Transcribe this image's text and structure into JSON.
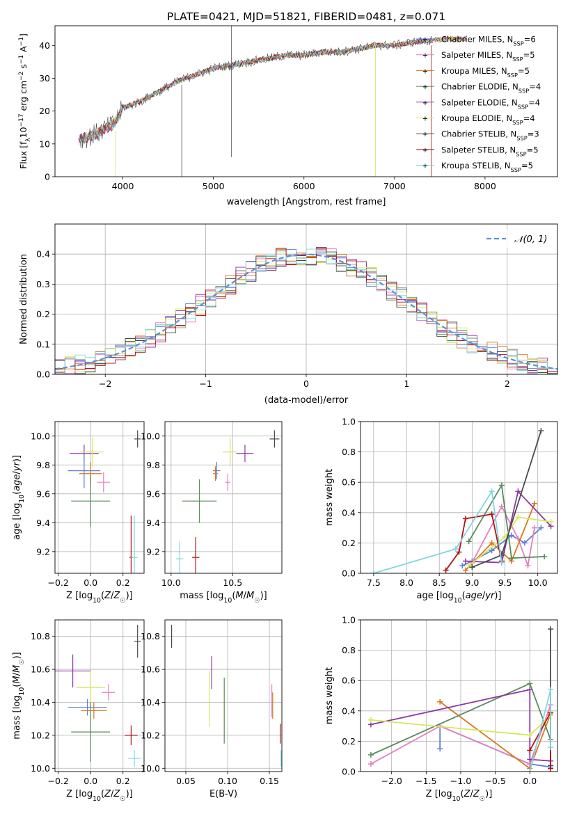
{
  "figure_title": "PLATE=0421, MJD=51821, FIBERID=0481, z=0.071",
  "colors": {
    "chabrier_miles": "#5b7fd6",
    "salpeter_miles": "#e37fbf",
    "kroupa_miles": "#d9761a",
    "chabrier_elodie": "#5a8a5a",
    "salpeter_elodie": "#8e35a8",
    "kroupa_elodie": "#d4e85a",
    "chabrier_stelib": "#4a4a4a",
    "salpeter_stelib": "#b01010",
    "kroupa_stelib": "#7fd6e0",
    "gaussian": "#5b8fd6"
  },
  "chart_data": [
    {
      "type": "line",
      "panel": "spectrum",
      "xlabel": "wavelength [Angstrom, rest frame]",
      "ylabel": "Flux [f_λ 10^-17 erg cm^-2 s^-1 A^-1]",
      "xlim": [
        3250,
        8800
      ],
      "ylim": [
        0,
        46
      ],
      "xticks": [
        "4000",
        "5000",
        "6000",
        "7000",
        "8000"
      ],
      "yticks": [
        "0",
        "10",
        "20",
        "30",
        "40"
      ],
      "legend_position": "top-right",
      "legend": [
        {
          "key": "chabrier_miles",
          "name": "Chabrier MILES, N",
          "sub": "SSP",
          "tail": "=6"
        },
        {
          "key": "salpeter_miles",
          "name": "Salpeter MILES, N",
          "sub": "SSP",
          "tail": "=5"
        },
        {
          "key": "kroupa_miles",
          "name": "Kroupa MILES, N",
          "sub": "SSP",
          "tail": "=5"
        },
        {
          "key": "chabrier_elodie",
          "name": "Chabrier ELODIE, N",
          "sub": "SSP",
          "tail": "=4"
        },
        {
          "key": "salpeter_elodie",
          "name": "Salpeter ELODIE, N",
          "sub": "SSP",
          "tail": "=4"
        },
        {
          "key": "kroupa_elodie",
          "name": "Kroupa ELODIE, N",
          "sub": "SSP",
          "tail": "=4"
        },
        {
          "key": "chabrier_stelib",
          "name": "Chabrier STELIB, N",
          "sub": "SSP",
          "tail": "=3"
        },
        {
          "key": "salpeter_stelib",
          "name": "Salpeter STELIB, N",
          "sub": "SSP",
          "tail": "=5"
        },
        {
          "key": "kroupa_stelib",
          "name": "Kroupa STELIB, N",
          "sub": "SSP",
          "tail": "=5"
        }
      ],
      "spectrum_trend": [
        [
          3500,
          11
        ],
        [
          3700,
          13
        ],
        [
          3900,
          16
        ],
        [
          4000,
          21
        ],
        [
          4200,
          23
        ],
        [
          4400,
          26
        ],
        [
          4600,
          29
        ],
        [
          4800,
          31
        ],
        [
          5000,
          33
        ],
        [
          5200,
          34
        ],
        [
          5400,
          35
        ],
        [
          5600,
          36
        ],
        [
          5800,
          37
        ],
        [
          6000,
          37
        ],
        [
          6200,
          38
        ],
        [
          6400,
          38
        ],
        [
          6600,
          39
        ],
        [
          6800,
          40
        ],
        [
          7000,
          40
        ],
        [
          7200,
          41
        ],
        [
          7400,
          41.5
        ],
        [
          7600,
          42
        ],
        [
          7800,
          42
        ]
      ],
      "spike_lines": [
        {
          "x": 5200,
          "y0": 6,
          "y1": 46,
          "key": "chabrier_stelib"
        },
        {
          "x": 4650,
          "y0": 0,
          "y1": 28,
          "key": "chabrier_stelib"
        },
        {
          "x": 3920,
          "y0": 0,
          "y1": 14,
          "key": "kroupa_elodie"
        },
        {
          "x": 6790,
          "y0": 0,
          "y1": 40,
          "key": "kroupa_elodie"
        },
        {
          "x": 7405,
          "y0": 0,
          "y1": 40,
          "key": "salpeter_stelib"
        }
      ]
    },
    {
      "type": "line",
      "panel": "residuals",
      "xlabel": "(data-model)/error",
      "ylabel": "Normed distribution",
      "xlim": [
        -2.5,
        2.5
      ],
      "ylim": [
        0,
        0.5
      ],
      "xticks": [
        "−2",
        "−1",
        "0",
        "1",
        "2"
      ],
      "yticks": [
        "0.0",
        "0.1",
        "0.2",
        "0.3",
        "0.4"
      ],
      "legend_position": "top-right",
      "legend_label": "𝒩(0, 1)",
      "bin_width": 0.1,
      "gaussian": {
        "mean": 0,
        "sigma": 1
      }
    },
    {
      "type": "scatter",
      "panel": "age_vs_Z",
      "xlabel": "Z [log10(Z/Z☉)]",
      "ylabel": "age [log10(age/yr)]",
      "xlim": [
        -0.22,
        0.33
      ],
      "ylim": [
        9.05,
        10.1
      ],
      "xticks": [
        "−0.2",
        "0.0",
        "0.2"
      ],
      "yticks": [
        "9.2",
        "9.4",
        "9.6",
        "9.8",
        "10.0"
      ],
      "points": [
        {
          "key": "chabrier_stelib",
          "x": 0.29,
          "y": 9.98,
          "xerr": 0.02,
          "yerr": 0.06
        },
        {
          "key": "salpeter_elodie",
          "x": -0.04,
          "y": 9.88,
          "xerr": 0.09,
          "yerr": 0.06
        },
        {
          "key": "kroupa_elodie",
          "x": 0.01,
          "y": 9.89,
          "xerr": 0.07,
          "yerr": 0.1
        },
        {
          "key": "chabrier_miles",
          "x": -0.04,
          "y": 9.76,
          "xerr": 0.1,
          "yerr": 0.12
        },
        {
          "key": "kroupa_miles",
          "x": 0.0,
          "y": 9.74,
          "xerr": 0.07,
          "yerr": 0.08
        },
        {
          "key": "salpeter_miles",
          "x": 0.08,
          "y": 9.68,
          "xerr": 0.04,
          "yerr": 0.07
        },
        {
          "key": "chabrier_elodie",
          "x": 0.0,
          "y": 9.55,
          "xerr": 0.12,
          "yerr": 0.18
        },
        {
          "key": "salpeter_stelib",
          "x": 0.25,
          "y": 9.16,
          "xerr": 0.01,
          "yerr": 0.29
        },
        {
          "key": "kroupa_stelib",
          "x": 0.27,
          "y": 9.16,
          "xerr": 0.02,
          "yerr": 0.29
        }
      ]
    },
    {
      "type": "scatter",
      "panel": "age_vs_mass",
      "xlabel": "mass [log10(M/M☉)]",
      "ylabel": "",
      "xlim": [
        9.95,
        10.9
      ],
      "ylim": [
        9.05,
        10.1
      ],
      "xticks": [
        "10.0",
        "10.5"
      ],
      "yticks": [
        "9.2",
        "9.4",
        "9.6",
        "9.8",
        "10.0"
      ],
      "points": [
        {
          "key": "chabrier_stelib",
          "x": 10.84,
          "y": 9.98,
          "xerr": 0.04,
          "yerr": 0.06
        },
        {
          "key": "salpeter_elodie",
          "x": 10.6,
          "y": 9.88,
          "xerr": 0.07,
          "yerr": 0.06
        },
        {
          "key": "kroupa_elodie",
          "x": 10.48,
          "y": 9.89,
          "xerr": 0.06,
          "yerr": 0.1
        },
        {
          "key": "chabrier_miles",
          "x": 10.37,
          "y": 9.76,
          "xerr": 0.03,
          "yerr": 0.06
        },
        {
          "key": "kroupa_miles",
          "x": 10.36,
          "y": 9.74,
          "xerr": 0.02,
          "yerr": 0.05
        },
        {
          "key": "salpeter_miles",
          "x": 10.46,
          "y": 9.68,
          "xerr": 0.02,
          "yerr": 0.06
        },
        {
          "key": "chabrier_elodie",
          "x": 10.23,
          "y": 9.55,
          "xerr": 0.14,
          "yerr": 0.15
        },
        {
          "key": "salpeter_stelib",
          "x": 10.2,
          "y": 9.16,
          "xerr": 0.03,
          "yerr": 0.14
        },
        {
          "key": "kroupa_stelib",
          "x": 10.07,
          "y": 9.15,
          "xerr": 0.03,
          "yerr": 0.12
        }
      ]
    },
    {
      "type": "line",
      "panel": "weight_vs_age",
      "xlabel": "age [log10(age/yr)]",
      "ylabel": "mass weight",
      "xlim": [
        7.3,
        10.3
      ],
      "ylim": [
        0,
        1
      ],
      "xticks": [
        "7.5",
        "8.0",
        "8.5",
        "9.0",
        "9.5",
        "10.0"
      ],
      "yticks": [
        "0.0",
        "0.2",
        "0.4",
        "0.6",
        "0.8",
        "1.0"
      ],
      "series": [
        {
          "key": "chabrier_miles",
          "points": [
            [
              8.85,
              0.05
            ],
            [
              9.0,
              0.08
            ],
            [
              9.3,
              0.15
            ],
            [
              9.6,
              0.25
            ],
            [
              9.8,
              0.2
            ],
            [
              10.05,
              0.3
            ]
          ]
        },
        {
          "key": "salpeter_miles",
          "points": [
            [
              9.0,
              0.07
            ],
            [
              9.45,
              0.44
            ],
            [
              9.7,
              0.23
            ],
            [
              9.85,
              0.05
            ],
            [
              9.95,
              0.3
            ]
          ]
        },
        {
          "key": "kroupa_miles",
          "points": [
            [
              8.9,
              0.02
            ],
            [
              9.3,
              0.2
            ],
            [
              9.6,
              0.08
            ],
            [
              9.95,
              0.46
            ]
          ]
        },
        {
          "key": "chabrier_elodie",
          "points": [
            [
              8.95,
              0.21
            ],
            [
              9.45,
              0.58
            ],
            [
              9.6,
              0.1
            ],
            [
              10.1,
              0.11
            ]
          ]
        },
        {
          "key": "salpeter_elodie",
          "points": [
            [
              8.9,
              0.08
            ],
            [
              9.45,
              0.07
            ],
            [
              9.7,
              0.54
            ],
            [
              10.2,
              0.31
            ]
          ]
        },
        {
          "key": "kroupa_elodie",
          "points": [
            [
              8.95,
              0.05
            ],
            [
              9.5,
              0.24
            ],
            [
              9.7,
              0.37
            ],
            [
              10.2,
              0.34
            ]
          ]
        },
        {
          "key": "chabrier_stelib",
          "points": [
            [
              9.0,
              0.04
            ],
            [
              9.45,
              0.12
            ],
            [
              10.05,
              0.94
            ]
          ]
        },
        {
          "key": "salpeter_stelib",
          "points": [
            [
              8.6,
              0.02
            ],
            [
              8.8,
              0.14
            ],
            [
              8.9,
              0.36
            ],
            [
              9.3,
              0.39
            ],
            [
              9.45,
              0.08
            ]
          ]
        },
        {
          "key": "kroupa_stelib",
          "points": [
            [
              7.5,
              0.0
            ],
            [
              8.75,
              0.16
            ],
            [
              9.3,
              0.54
            ],
            [
              9.45,
              0.07
            ]
          ]
        }
      ]
    },
    {
      "type": "scatter",
      "panel": "mass_vs_Z",
      "xlabel": "Z [log10(Z/Z☉)]",
      "ylabel": "mass [log10(M/M☉)]",
      "xlim": [
        -0.22,
        0.33
      ],
      "ylim": [
        9.98,
        10.9
      ],
      "xticks": [
        "−0.2",
        "0.0",
        "0.2"
      ],
      "yticks": [
        "10.0",
        "10.2",
        "10.4",
        "10.6",
        "10.8"
      ],
      "points": [
        {
          "key": "chabrier_stelib",
          "x": 0.29,
          "y": 10.77,
          "xerr": 0.02,
          "yerr": 0.1
        },
        {
          "key": "salpeter_elodie",
          "x": -0.11,
          "y": 10.59,
          "xerr": 0.11,
          "yerr": 0.1
        },
        {
          "key": "kroupa_elodie",
          "x": 0.0,
          "y": 10.49,
          "xerr": 0.09,
          "yerr": 0.1
        },
        {
          "key": "salpeter_miles",
          "x": 0.11,
          "y": 10.46,
          "xerr": 0.04,
          "yerr": 0.05
        },
        {
          "key": "chabrier_miles",
          "x": -0.02,
          "y": 10.37,
          "xerr": 0.12,
          "yerr": 0.05
        },
        {
          "key": "kroupa_miles",
          "x": 0.02,
          "y": 10.35,
          "xerr": 0.08,
          "yerr": 0.05
        },
        {
          "key": "chabrier_elodie",
          "x": 0.0,
          "y": 10.22,
          "xerr": 0.12,
          "yerr": 0.18
        },
        {
          "key": "salpeter_stelib",
          "x": 0.25,
          "y": 10.2,
          "xerr": 0.04,
          "yerr": 0.06
        },
        {
          "key": "kroupa_stelib",
          "x": 0.27,
          "y": 10.06,
          "xerr": 0.04,
          "yerr": 0.05
        }
      ]
    },
    {
      "type": "scatter",
      "panel": "mass_vs_ebv",
      "xlabel": "E(B-V)",
      "ylabel": "",
      "xlim": [
        0.025,
        0.165
      ],
      "ylim": [
        9.98,
        10.9
      ],
      "xticks": [
        "0.05",
        "0.10",
        "0.15"
      ],
      "yticks": [
        "10.0",
        "10.2",
        "10.4",
        "10.6",
        "10.8"
      ],
      "points": [
        {
          "key": "chabrier_stelib",
          "x": 0.033,
          "y": 10.8,
          "yerr": 0.07
        },
        {
          "key": "salpeter_elodie",
          "x": 0.081,
          "y": 10.58,
          "yerr": 0.1
        },
        {
          "key": "kroupa_elodie",
          "x": 0.078,
          "y": 10.42,
          "yerr": 0.17
        },
        {
          "key": "chabrier_elodie",
          "x": 0.096,
          "y": 10.35,
          "yerr": 0.2
        },
        {
          "key": "salpeter_miles",
          "x": 0.153,
          "y": 10.41,
          "yerr": 0.1
        },
        {
          "key": "kroupa_miles",
          "x": 0.154,
          "y": 10.38,
          "yerr": 0.08
        },
        {
          "key": "salpeter_stelib",
          "x": 0.163,
          "y": 10.21,
          "yerr": 0.06
        },
        {
          "key": "kroupa_stelib",
          "x": 0.164,
          "y": 10.06,
          "yerr": 0.05
        }
      ]
    },
    {
      "type": "line",
      "panel": "weight_vs_Z",
      "xlabel": "Z [log10(Z/Z☉)]",
      "ylabel": "mass weight",
      "xlim": [
        -2.45,
        0.4
      ],
      "ylim": [
        0,
        1
      ],
      "xticks": [
        "−2.0",
        "−1.5",
        "−1.0",
        "−0.5",
        "0.0"
      ],
      "yticks": [
        "0.0",
        "0.2",
        "0.4",
        "0.6",
        "0.8",
        "1.0"
      ],
      "series": [
        {
          "key": "chabrier_miles",
          "points": [
            [
              -1.3,
              0.15
            ],
            [
              -1.3,
              0.3
            ],
            [
              0.0,
              0.05
            ],
            [
              0.3,
              0.03
            ]
          ]
        },
        {
          "key": "salpeter_miles",
          "points": [
            [
              -2.3,
              0.05
            ],
            [
              -1.3,
              0.3
            ],
            [
              0.0,
              0.05
            ],
            [
              0.3,
              0.44
            ]
          ]
        },
        {
          "key": "kroupa_miles",
          "points": [
            [
              -1.3,
              0.46
            ],
            [
              0.0,
              0.02
            ],
            [
              0.3,
              0.38
            ]
          ]
        },
        {
          "key": "chabrier_elodie",
          "points": [
            [
              -2.3,
              0.11
            ],
            [
              0.0,
              0.58
            ],
            [
              0.3,
              0.21
            ]
          ]
        },
        {
          "key": "salpeter_elodie",
          "points": [
            [
              -2.3,
              0.31
            ],
            [
              0.0,
              0.54
            ],
            [
              0.0,
              0.08
            ],
            [
              0.3,
              0.07
            ]
          ]
        },
        {
          "key": "kroupa_elodie",
          "points": [
            [
              -2.3,
              0.34
            ],
            [
              0.0,
              0.24
            ],
            [
              0.3,
              0.37
            ]
          ]
        },
        {
          "key": "chabrier_stelib",
          "points": [
            [
              0.3,
              0.04
            ],
            [
              0.3,
              0.94
            ]
          ]
        },
        {
          "key": "salpeter_stelib",
          "points": [
            [
              0.0,
              0.14
            ],
            [
              0.3,
              0.39
            ],
            [
              0.3,
              0.02
            ]
          ]
        },
        {
          "key": "kroupa_stelib",
          "points": [
            [
              0.0,
              0.0
            ],
            [
              0.3,
              0.54
            ],
            [
              0.3,
              0.16
            ]
          ]
        }
      ]
    }
  ]
}
